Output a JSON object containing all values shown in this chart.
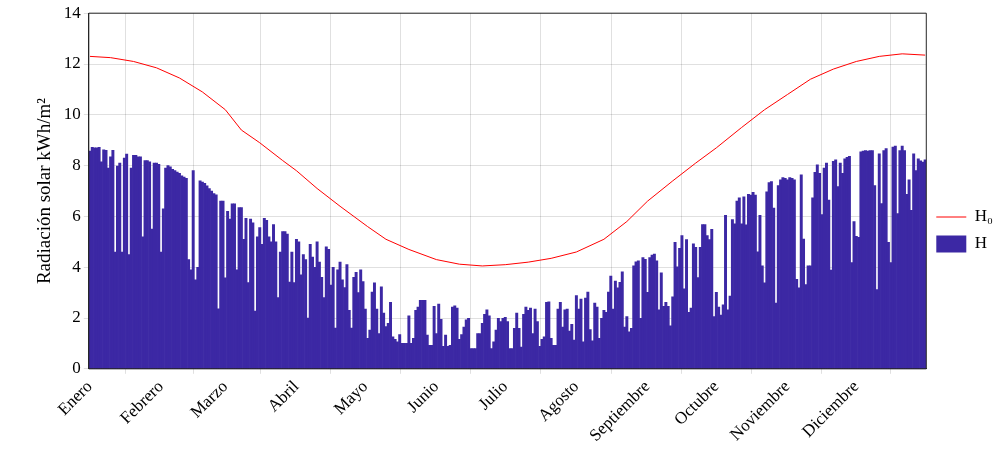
{
  "chart_data": {
    "type": "bar",
    "ylabel": "Radiación solar kWh/m²",
    "xlim": [
      "--01-01",
      "--12-31"
    ],
    "xticks": [
      {
        "value": "--01-01",
        "label": "Enero"
      },
      {
        "value": "--02-01",
        "label": "Febrero"
      },
      {
        "value": "--03-01",
        "label": "Marzo"
      },
      {
        "value": "--04-01",
        "label": "Abril"
      },
      {
        "value": "--05-01",
        "label": "Mayo"
      },
      {
        "value": "--06-01",
        "label": "Junio"
      },
      {
        "value": "--07-01",
        "label": "Julio"
      },
      {
        "value": "--08-01",
        "label": "Agosto"
      },
      {
        "value": "--09-01",
        "label": "Septiembre"
      },
      {
        "value": "--10-01",
        "label": "Octubre"
      },
      {
        "value": "--11-01",
        "label": "Noviembre"
      },
      {
        "value": "--12-01",
        "label": "Diciembre"
      }
    ],
    "ylim": [
      0,
      14
    ],
    "yticks": [
      0,
      2,
      4,
      6,
      8,
      10,
      12,
      14
    ],
    "grid": true,
    "legend": "right",
    "series": [
      {
        "type": "line",
        "name": "H₀",
        "color": "#ff0000",
        "x": [
          "--01-01",
          "--01-10",
          "--01-20",
          "--01-30",
          "--02-09",
          "--02-19",
          "--03-01",
          "--03-08",
          "--03-16",
          "--03-26",
          "--04-01",
          "--04-10",
          "--04-20",
          "--05-02",
          "--05-10",
          "--05-20",
          "--06-01",
          "--06-11",
          "--06-21",
          "--07-01",
          "--07-11",
          "--07-21",
          "--08-01",
          "--08-13",
          "--08-23",
          "--09-01",
          "--09-12",
          "--09-22",
          "--10-01",
          "--10-12",
          "--10-22",
          "--11-01",
          "--11-11",
          "--11-21",
          "--12-01",
          "--12-11",
          "--12-21",
          "--12-31"
        ],
        "values": [
          12.3,
          12.25,
          12.1,
          11.85,
          11.45,
          10.9,
          10.2,
          9.4,
          8.9,
          8.2,
          7.8,
          7.1,
          6.4,
          5.6,
          5.1,
          4.7,
          4.3,
          4.12,
          4.05,
          4.1,
          4.2,
          4.35,
          4.6,
          5.1,
          5.8,
          6.6,
          7.4,
          8.1,
          8.7,
          9.5,
          10.2,
          10.8,
          11.4,
          11.8,
          12.1,
          12.3,
          12.4,
          12.35
        ]
      },
      {
        "name": "H",
        "color": "#3c28a4",
        "x": [
          "--01-01",
          "--01-02",
          "--01-03",
          "--01-04",
          "--01-05",
          "--01-06",
          "--01-07",
          "--01-08",
          "--01-09",
          "--01-10",
          "--01-11",
          "--01-12",
          "--01-13",
          "--01-14",
          "--01-15",
          "--01-16",
          "--01-17",
          "--01-18",
          "--01-19",
          "--01-20",
          "--01-21",
          "--01-22",
          "--01-23",
          "--01-24",
          "--01-25",
          "--01-26",
          "--01-27",
          "--01-28",
          "--01-29",
          "--01-30",
          "--01-31",
          "--02-01",
          "--02-02",
          "--02-03",
          "--02-04",
          "--02-05",
          "--02-06",
          "--02-07",
          "--02-08",
          "--02-09",
          "--02-10",
          "--02-11",
          "--02-12",
          "--02-13",
          "--02-14",
          "--02-15",
          "--02-16",
          "--02-17",
          "--02-18",
          "--02-19",
          "--02-20",
          "--02-21",
          "--02-22",
          "--02-23",
          "--02-24",
          "--02-25",
          "--02-26",
          "--02-27",
          "--02-28",
          "--03-01",
          "--03-02",
          "--03-03",
          "--03-04",
          "--03-05",
          "--03-06",
          "--03-07",
          "--03-08",
          "--03-09",
          "--03-10",
          "--03-11",
          "--03-12",
          "--03-13",
          "--03-14",
          "--03-15",
          "--03-16",
          "--03-17",
          "--03-18",
          "--03-19",
          "--03-20",
          "--03-21",
          "--03-22",
          "--03-23",
          "--03-24",
          "--03-25",
          "--03-26",
          "--03-27",
          "--03-28",
          "--03-29",
          "--03-30",
          "--03-31",
          "--04-01",
          "--04-02",
          "--04-03",
          "--04-04",
          "--04-05",
          "--04-06",
          "--04-07",
          "--04-08",
          "--04-09",
          "--04-10",
          "--04-11",
          "--04-12",
          "--04-13",
          "--04-14",
          "--04-15",
          "--04-16",
          "--04-17",
          "--04-18",
          "--04-19",
          "--04-20",
          "--04-21",
          "--04-22",
          "--04-23",
          "--04-24",
          "--04-25",
          "--04-26",
          "--04-27",
          "--04-28",
          "--04-29",
          "--04-30",
          "--05-01",
          "--05-02",
          "--05-03",
          "--05-04",
          "--05-05",
          "--05-06",
          "--05-07",
          "--05-08",
          "--05-09",
          "--05-10",
          "--05-11",
          "--05-12",
          "--05-13",
          "--05-14",
          "--05-15",
          "--05-16",
          "--05-17",
          "--05-18",
          "--05-19",
          "--05-20",
          "--05-21",
          "--05-22",
          "--05-23",
          "--05-24",
          "--05-25",
          "--05-26",
          "--05-27",
          "--05-28",
          "--05-29",
          "--05-30",
          "--05-31",
          "--06-01",
          "--06-02",
          "--06-03",
          "--06-04",
          "--06-05",
          "--06-06",
          "--06-07",
          "--06-08",
          "--06-09",
          "--06-10",
          "--06-11",
          "--06-12",
          "--06-13",
          "--06-14",
          "--06-15",
          "--06-16",
          "--06-17",
          "--06-18",
          "--06-19",
          "--06-20",
          "--06-21",
          "--06-22",
          "--06-23",
          "--06-24",
          "--06-25",
          "--06-26",
          "--06-27",
          "--06-28",
          "--06-29",
          "--06-30",
          "--07-01",
          "--07-02",
          "--07-03",
          "--07-04",
          "--07-05",
          "--07-06",
          "--07-07",
          "--07-08",
          "--07-09",
          "--07-10",
          "--07-11",
          "--07-12",
          "--07-13",
          "--07-14",
          "--07-15",
          "--07-16",
          "--07-17",
          "--07-18",
          "--07-19",
          "--07-20",
          "--07-21",
          "--07-22",
          "--07-23",
          "--07-24",
          "--07-25",
          "--07-26",
          "--07-27",
          "--07-28",
          "--07-29",
          "--07-30",
          "--07-31",
          "--08-01",
          "--08-02",
          "--08-03",
          "--08-04",
          "--08-05",
          "--08-06",
          "--08-07",
          "--08-08",
          "--08-09",
          "--08-10",
          "--08-11",
          "--08-12",
          "--08-13",
          "--08-14",
          "--08-15",
          "--08-16",
          "--08-17",
          "--08-18",
          "--08-19",
          "--08-20",
          "--08-21",
          "--08-22",
          "--08-23",
          "--08-24",
          "--08-25",
          "--08-26",
          "--08-27",
          "--08-28",
          "--08-29",
          "--08-30",
          "--08-31",
          "--09-01",
          "--09-02",
          "--09-03",
          "--09-04",
          "--09-05",
          "--09-06",
          "--09-07",
          "--09-08",
          "--09-09",
          "--09-10",
          "--09-11",
          "--09-12",
          "--09-13",
          "--09-14",
          "--09-15",
          "--09-16",
          "--09-17",
          "--09-18",
          "--09-19",
          "--09-20",
          "--09-21",
          "--09-22",
          "--09-23",
          "--09-24",
          "--09-25",
          "--09-26",
          "--09-27",
          "--09-28",
          "--09-29",
          "--09-30",
          "--10-01",
          "--10-02",
          "--10-03",
          "--10-04",
          "--10-05",
          "--10-06",
          "--10-07",
          "--10-08",
          "--10-09",
          "--10-10",
          "--10-11",
          "--10-12",
          "--10-13",
          "--10-14",
          "--10-15",
          "--10-16",
          "--10-17",
          "--10-18",
          "--10-19",
          "--10-20",
          "--10-21",
          "--10-22",
          "--10-23",
          "--10-24",
          "--10-25",
          "--10-26",
          "--10-27",
          "--10-28",
          "--10-29",
          "--10-30",
          "--10-31",
          "--11-01",
          "--11-02",
          "--11-03",
          "--11-04",
          "--11-05",
          "--11-06",
          "--11-07",
          "--11-08",
          "--11-09",
          "--11-10",
          "--11-11",
          "--11-12",
          "--11-13",
          "--11-14",
          "--11-15",
          "--11-16",
          "--11-17",
          "--11-18",
          "--11-19",
          "--11-20",
          "--11-21",
          "--11-22",
          "--11-23",
          "--11-24",
          "--11-25",
          "--11-26",
          "--11-27",
          "--11-28",
          "--11-29",
          "--11-30",
          "--12-01",
          "--12-02",
          "--12-03",
          "--12-04",
          "--12-05",
          "--12-06",
          "--12-07",
          "--12-08",
          "--12-09",
          "--12-10",
          "--12-11",
          "--12-12",
          "--12-13",
          "--12-14",
          "--12-15",
          "--12-16",
          "--12-17",
          "--12-18",
          "--12-19",
          "--12-20",
          "--12-21",
          "--12-22",
          "--12-23",
          "--12-24",
          "--12-25",
          "--12-26",
          "--12-27",
          "--12-28",
          "--12-29",
          "--12-30",
          "--12-31"
        ],
        "values": [
          8.57,
          8.72,
          8.7,
          8.7,
          8.72,
          8.15,
          8.62,
          8.6,
          7.9,
          8.35,
          8.6,
          4.6,
          7.98,
          8.1,
          4.6,
          8.3,
          8.45,
          4.5,
          7.9,
          8.4,
          8.4,
          8.35,
          8.35,
          5.2,
          8.2,
          8.2,
          8.15,
          5.5,
          8.1,
          8.1,
          8.05,
          4.6,
          6.3,
          7.9,
          8.0,
          7.95,
          7.85,
          7.8,
          7.75,
          7.7,
          7.6,
          7.55,
          7.5,
          4.3,
          3.9,
          7.8,
          3.5,
          4.0,
          7.4,
          7.35,
          7.3,
          7.2,
          7.1,
          7.0,
          6.9,
          6.85,
          2.36,
          6.6,
          6.6,
          3.58,
          6.2,
          5.9,
          6.5,
          6.5,
          3.9,
          6.35,
          6.35,
          5.1,
          5.92,
          3.4,
          5.9,
          5.75,
          2.27,
          5.2,
          5.56,
          4.9,
          5.92,
          5.85,
          5.2,
          5.0,
          5.68,
          5.0,
          2.8,
          4.6,
          5.4,
          5.4,
          5.3,
          3.42,
          4.6,
          3.4,
          5.1,
          5.0,
          3.7,
          4.5,
          4.3,
          2.0,
          4.9,
          4.4,
          4.0,
          5.0,
          4.2,
          3.6,
          2.8,
          4.8,
          4.7,
          3.3,
          4.0,
          1.6,
          3.9,
          4.2,
          3.5,
          3.2,
          4.1,
          2.3,
          1.6,
          3.6,
          3.8,
          3.0,
          3.9,
          3.43,
          2.35,
          1.2,
          1.53,
          3.02,
          3.39,
          2.35,
          1.39,
          3.23,
          2.19,
          1.66,
          1.79,
          2.62,
          1.26,
          1.16,
          1.06,
          1.35,
          1.0,
          1.0,
          1.0,
          2.09,
          1.0,
          1.2,
          2.3,
          2.43,
          2.7,
          2.7,
          2.7,
          1.33,
          0.93,
          0.93,
          2.46,
          1.39,
          2.55,
          1.95,
          0.89,
          1.33,
          0.89,
          0.93,
          2.43,
          2.48,
          2.39,
          1.16,
          1.35,
          1.64,
          1.93,
          1.99,
          0.8,
          0.8,
          0.8,
          1.39,
          1.39,
          1.79,
          2.15,
          2.32,
          2.09,
          0.8,
          1.06,
          1.53,
          1.99,
          1.86,
          1.99,
          2.03,
          1.86,
          0.8,
          0.8,
          1.59,
          2.19,
          1.59,
          0.86,
          2.15,
          2.43,
          2.3,
          2.39,
          1.39,
          2.35,
          1.86,
          0.89,
          1.16,
          1.26,
          2.62,
          2.64,
          1.2,
          0.93,
          0.93,
          2.35,
          2.62,
          1.64,
          2.32,
          2.35,
          1.49,
          1.75,
          1.13,
          2.88,
          2.35,
          2.75,
          1.06,
          2.79,
          3.02,
          1.55,
          1.1,
          2.59,
          2.43,
          1.2,
          1.99,
          2.3,
          2.22,
          3.02,
          3.65,
          2.35,
          3.45,
          3.19,
          3.41,
          3.82,
          1.64,
          2.06,
          1.46,
          1.59,
          4.05,
          4.21,
          4.25,
          1.99,
          4.38,
          4.31,
          3.01,
          4.38,
          4.48,
          4.52,
          4.25,
          2.32,
          3.78,
          2.46,
          2.62,
          2.46,
          1.69,
          2.83,
          4.98,
          4.02,
          4.74,
          5.25,
          3.15,
          5.09,
          2.22,
          2.39,
          4.92,
          4.78,
          3.59,
          4.78,
          5.68,
          5.68,
          5.25,
          5.09,
          5.49,
          2.06,
          3.01,
          2.43,
          2.12,
          2.52,
          6.04,
          2.32,
          2.86,
          5.88,
          5.71,
          6.6,
          6.73,
          5.71,
          6.77,
          5.67,
          6.87,
          6.84,
          6.95,
          6.84,
          4.61,
          6.04,
          4.05,
          3.39,
          6.97,
          7.33,
          7.37,
          6.33,
          2.59,
          7.21,
          7.44,
          7.53,
          7.5,
          7.44,
          7.53,
          7.5,
          7.44,
          3.52,
          3.19,
          7.64,
          5.11,
          3.32,
          4.05,
          4.05,
          6.73,
          7.74,
          8.03,
          7.7,
          6.07,
          7.9,
          8.1,
          6.64,
          3.89,
          8.17,
          8.23,
          7.17,
          8.1,
          7.7,
          8.27,
          8.33,
          8.37,
          4.18,
          5.8,
          5.22,
          5.18,
          8.54,
          8.57,
          8.59,
          8.57,
          8.59,
          8.59,
          7.21,
          3.12,
          8.46,
          6.51,
          8.59,
          8.67,
          4.98,
          4.18,
          8.73,
          8.77,
          6.11,
          8.59,
          8.77,
          8.59,
          6.87,
          7.44,
          6.24,
          8.46,
          7.8,
          8.27,
          8.19,
          8.14,
          8.23
        ]
      }
    ]
  }
}
